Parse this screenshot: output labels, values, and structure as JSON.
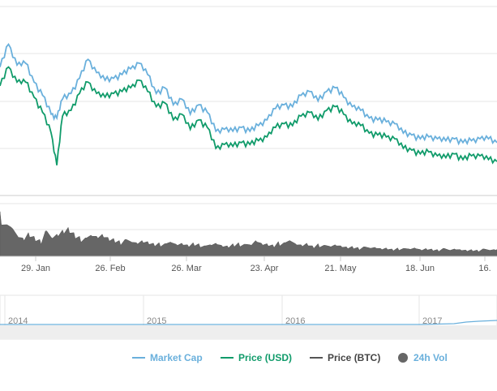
{
  "chart_data": {
    "type": "line",
    "title": "",
    "xlabel": "",
    "ylabel": "",
    "grid": true,
    "legend_placement": "bottom",
    "x_ticks": [
      "29. Jan",
      "26. Feb",
      "26. Mar",
      "23. Apr",
      "21. May",
      "18. Jun",
      "16."
    ],
    "navigator_years": [
      "2014",
      "2015",
      "2016",
      "2017"
    ],
    "x_range": [
      0,
      175
    ],
    "y_range": [
      0,
      100
    ],
    "series": [
      {
        "name": "Market Cap",
        "color": "#6ab0dc",
        "x": [
          0,
          3,
          6,
          9,
          12,
          15,
          18,
          20,
          22,
          25,
          28,
          31,
          34,
          37,
          40,
          43,
          46,
          49,
          52,
          55,
          58,
          61,
          64,
          67,
          70,
          73,
          76,
          79,
          82,
          85,
          88,
          91,
          94,
          97,
          100,
          103,
          106,
          109,
          112,
          115,
          118,
          121,
          124,
          127,
          130,
          133,
          136,
          139,
          142,
          145,
          148,
          151,
          154,
          157,
          160,
          163,
          166,
          169,
          172,
          175
        ],
        "values": [
          68,
          80,
          69,
          70,
          60,
          53,
          43,
          41,
          51,
          54,
          62,
          72,
          65,
          61,
          62,
          64,
          67,
          70,
          64,
          54,
          57,
          48,
          51,
          43,
          48,
          44,
          34,
          35,
          34,
          36,
          34,
          37,
          40,
          46,
          48,
          47,
          53,
          55,
          50,
          55,
          57,
          52,
          47,
          45,
          41,
          40,
          39,
          38,
          33,
          32,
          30,
          31,
          30,
          29,
          30,
          28,
          29,
          30,
          30,
          28
        ]
      },
      {
        "name": "Price (USD)",
        "color": "#109b6a",
        "x": [
          0,
          3,
          6,
          9,
          12,
          15,
          18,
          20,
          22,
          25,
          28,
          31,
          34,
          37,
          40,
          43,
          46,
          49,
          52,
          55,
          58,
          61,
          64,
          67,
          70,
          73,
          76,
          79,
          82,
          85,
          88,
          91,
          94,
          97,
          100,
          103,
          106,
          109,
          112,
          115,
          118,
          121,
          124,
          127,
          130,
          133,
          136,
          139,
          142,
          145,
          148,
          151,
          154,
          157,
          160,
          163,
          166,
          169,
          172,
          175
        ],
        "values": [
          58,
          68,
          60,
          60,
          52,
          44,
          33,
          16,
          42,
          45,
          54,
          60,
          54,
          52,
          54,
          55,
          57,
          61,
          55,
          47,
          49,
          40,
          43,
          35,
          40,
          36,
          25,
          27,
          26,
          28,
          27,
          29,
          31,
          36,
          38,
          37,
          42,
          44,
          40,
          45,
          47,
          43,
          38,
          37,
          33,
          32,
          31,
          30,
          25,
          24,
          22,
          23,
          21,
          20,
          22,
          19,
          21,
          21,
          19,
          18
        ]
      },
      {
        "name": "Price (BTC)",
        "color": "#555555",
        "x": [],
        "values": []
      },
      {
        "name": "24h Vol",
        "color": "#666666",
        "x": [
          0,
          2,
          4,
          6,
          8,
          10,
          12,
          14,
          16,
          18,
          20,
          22,
          24,
          26,
          28,
          30,
          32,
          34,
          36,
          38,
          40,
          42,
          44,
          46,
          48,
          50,
          52,
          54,
          56,
          58,
          60,
          62,
          64,
          66,
          68,
          70,
          72,
          74,
          76,
          78,
          80,
          82,
          84,
          86,
          88,
          90,
          92,
          94,
          96,
          98,
          100,
          102,
          104,
          106,
          108,
          110,
          112,
          114,
          116,
          118,
          120,
          122,
          124,
          126,
          128,
          130,
          132,
          134,
          136,
          138,
          140,
          142,
          144,
          146,
          148,
          150,
          152,
          154,
          156,
          158,
          160,
          162,
          164,
          166,
          168,
          170,
          172,
          174
        ],
        "values": [
          85,
          60,
          55,
          40,
          35,
          45,
          38,
          32,
          48,
          36,
          42,
          50,
          55,
          45,
          38,
          35,
          40,
          38,
          42,
          36,
          34,
          30,
          32,
          28,
          26,
          30,
          28,
          25,
          26,
          24,
          27,
          23,
          25,
          22,
          26,
          24,
          20,
          22,
          25,
          21,
          20,
          24,
          26,
          23,
          22,
          30,
          25,
          24,
          22,
          28,
          26,
          30,
          24,
          22,
          25,
          20,
          24,
          21,
          19,
          22,
          20,
          18,
          19,
          17,
          18,
          16,
          17,
          15,
          16,
          14,
          16,
          15,
          14,
          16,
          13,
          15,
          14,
          13,
          15,
          12,
          14,
          13,
          12,
          13,
          12,
          14,
          12,
          13
        ]
      }
    ]
  }
}
